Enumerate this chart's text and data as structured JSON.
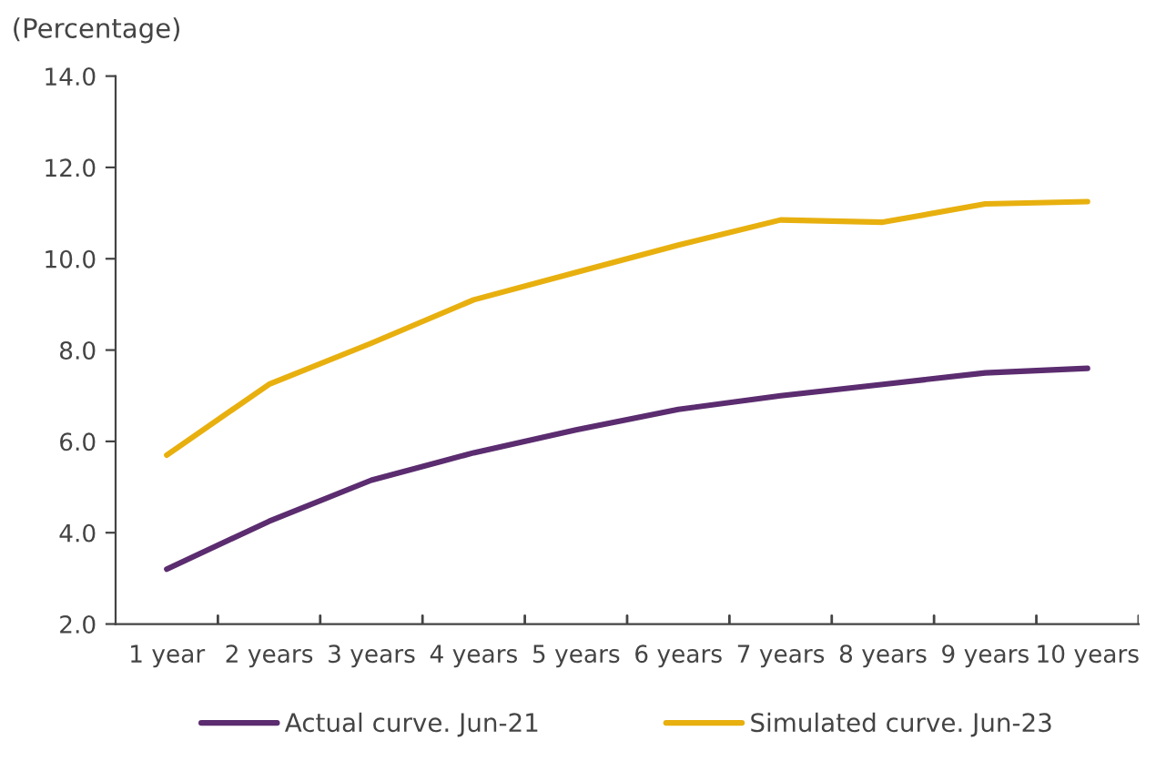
{
  "chart_data": {
    "type": "line",
    "ylabel": "(Percentage)",
    "categories": [
      "1 year",
      "2 years",
      "3 years",
      "4 years",
      "5 years",
      "6 years",
      "7 years",
      "8 years",
      "9 years",
      "10 years"
    ],
    "series": [
      {
        "name": "Actual curve. Jun-21",
        "color": "#5b2c6f",
        "values": [
          3.2,
          4.25,
          5.15,
          5.75,
          6.25,
          6.7,
          7.0,
          7.25,
          7.5,
          7.6
        ]
      },
      {
        "name": "Simulated curve. Jun-23",
        "color": "#e8b00f",
        "values": [
          5.7,
          7.25,
          8.15,
          9.1,
          9.7,
          10.3,
          10.85,
          10.8,
          11.2,
          11.25
        ]
      }
    ],
    "ylim": [
      2.0,
      14.0
    ],
    "yticks": [
      {
        "value": 2,
        "label": "2.0"
      },
      {
        "value": 4,
        "label": "4.0"
      },
      {
        "value": 6,
        "label": "6.0"
      },
      {
        "value": 8,
        "label": "8.0"
      },
      {
        "value": 10,
        "label": "10.0"
      },
      {
        "value": 12,
        "label": "12.0"
      },
      {
        "value": 14,
        "label": "14.0"
      }
    ],
    "grid": false,
    "legend": "bottom",
    "marker": "none",
    "line_style": "solid"
  }
}
